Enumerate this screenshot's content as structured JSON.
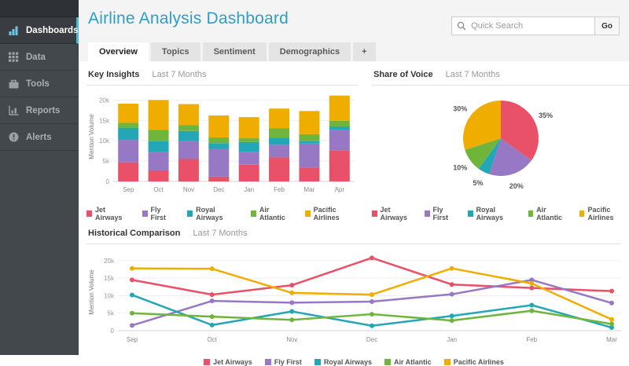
{
  "app": {
    "accent_color": "#4bb8dd",
    "title_color": "#2f9dc4",
    "sidebar_bg": "#43484d"
  },
  "sidebar": {
    "items": [
      {
        "label": "Dashboards",
        "icon": "dashboards",
        "active": true
      },
      {
        "label": "Data",
        "icon": "data",
        "active": false
      },
      {
        "label": "Tools",
        "icon": "tools",
        "active": false
      },
      {
        "label": "Reports",
        "icon": "reports",
        "active": false
      },
      {
        "label": "Alerts",
        "icon": "alerts",
        "active": false
      }
    ]
  },
  "header": {
    "title": "Airline Analysis Dashboard",
    "search_placeholder": "Quick Search",
    "go_label": "Go"
  },
  "tabs": {
    "items": [
      {
        "label": "Overview",
        "active": true
      },
      {
        "label": "Topics",
        "active": false
      },
      {
        "label": "Sentiment",
        "active": false
      },
      {
        "label": "Demographics",
        "active": false
      },
      {
        "label": "+",
        "active": false,
        "add": true
      }
    ]
  },
  "chart_data": [
    {
      "type": "bar",
      "stacked": true,
      "title": "Key Insights",
      "period": "Last 7 Months",
      "categories": [
        "Sep",
        "Oct",
        "Nov",
        "Dec",
        "Jan",
        "Feb",
        "Mar",
        "Apr"
      ],
      "series": [
        {
          "name": "Jet Airways",
          "color": "#e85167",
          "values": [
            4700,
            2700,
            5500,
            1200,
            4100,
            5900,
            3400,
            7600
          ]
        },
        {
          "name": "Fly First",
          "color": "#9678c4",
          "values": [
            5500,
            4500,
            4400,
            6800,
            3200,
            3100,
            5900,
            5000
          ]
        },
        {
          "name": "Royal Airways",
          "color": "#23a6b6",
          "values": [
            3000,
            2700,
            2500,
            1400,
            2400,
            1700,
            600,
            900
          ]
        },
        {
          "name": "Air Atlantic",
          "color": "#6fb53c",
          "values": [
            1200,
            2800,
            1400,
            1400,
            900,
            2400,
            1700,
            1400
          ]
        },
        {
          "name": "Pacific Airlines",
          "color": "#efad00",
          "values": [
            4700,
            7300,
            5200,
            5400,
            5200,
            4800,
            5700,
            6200
          ]
        }
      ],
      "ylabel": "Mention Volume",
      "yticks": [
        [
          0,
          "0"
        ],
        [
          5000,
          "5k"
        ],
        [
          10000,
          "10k"
        ],
        [
          15000,
          "15k"
        ],
        [
          20000,
          "20k"
        ]
      ],
      "ymax": 22000,
      "legend_position": "bottom",
      "grid": true
    },
    {
      "type": "pie",
      "title": "Share of Voice",
      "period": "Last 7 Months",
      "slices": [
        {
          "label": "Jet Airways",
          "pct": 35,
          "color": "#e85167"
        },
        {
          "label": "Fly First",
          "pct": 20,
          "color": "#9678c4"
        },
        {
          "label": "Royal Airways",
          "pct": 5,
          "color": "#23a6b6"
        },
        {
          "label": "Air Atlantic",
          "pct": 10,
          "color": "#6fb53c"
        },
        {
          "label": "Pacific Airlines",
          "pct": 30,
          "color": "#efad00"
        }
      ],
      "legend_position": "bottom"
    },
    {
      "type": "line",
      "title": "Historical Comparison",
      "period": "Last 7 Months",
      "categories": [
        "Sep",
        "Oct",
        "Nov",
        "Dec",
        "Jan",
        "Feb",
        "Mar"
      ],
      "series": [
        {
          "name": "Jet Airways",
          "color": "#e85167",
          "values": [
            14500,
            10300,
            13000,
            20800,
            13200,
            12200,
            11300
          ]
        },
        {
          "name": "Fly First",
          "color": "#9678c4",
          "values": [
            1500,
            8500,
            8000,
            8300,
            10400,
            14500,
            7900
          ]
        },
        {
          "name": "Royal Airways",
          "color": "#23a6b6",
          "values": [
            10200,
            1600,
            5500,
            1400,
            4200,
            7300,
            900
          ]
        },
        {
          "name": "Air Atlantic",
          "color": "#6fb53c",
          "values": [
            5000,
            4000,
            3100,
            4700,
            2900,
            5700,
            1900
          ]
        },
        {
          "name": "Pacific Airlines",
          "color": "#efad00",
          "values": [
            17800,
            17700,
            10800,
            10300,
            17800,
            13500,
            3200
          ]
        }
      ],
      "ylabel": "Mention Volume",
      "yticks": [
        [
          0,
          "0"
        ],
        [
          5000,
          "5k"
        ],
        [
          10000,
          "10k"
        ],
        [
          15000,
          "15k"
        ],
        [
          20000,
          "20k"
        ]
      ],
      "ymax": 22000,
      "legend_position": "bottom",
      "grid": true
    }
  ]
}
